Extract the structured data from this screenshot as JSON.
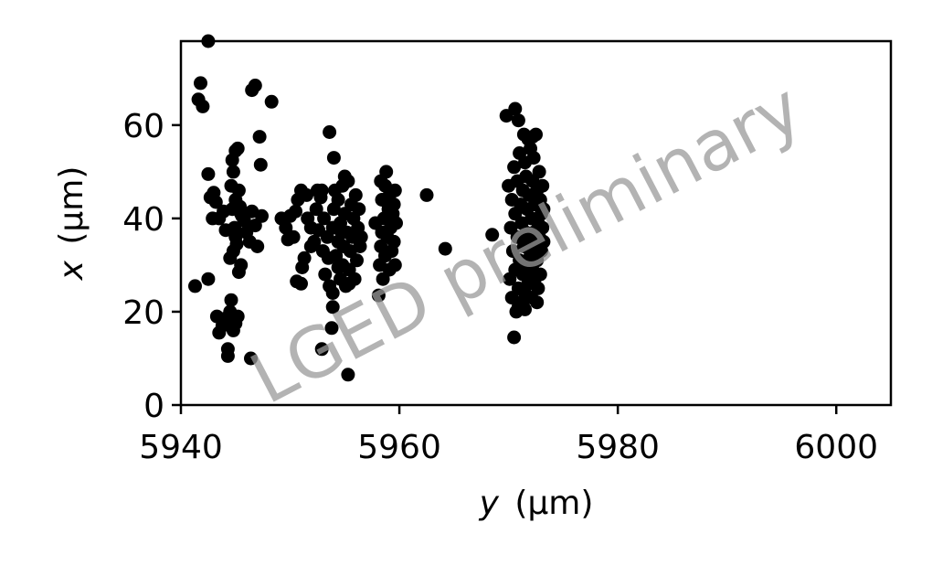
{
  "chart_data": {
    "type": "scatter",
    "xlabel_var": "y",
    "xlabel_unit": "(µm)",
    "ylabel_var": "x",
    "ylabel_unit": "(µm)",
    "xlim": [
      5940,
      6005
    ],
    "ylim": [
      0,
      78
    ],
    "xticks": [
      5940,
      5960,
      5980,
      6000
    ],
    "yticks": [
      0,
      20,
      40,
      60
    ],
    "grid": false,
    "marker_color": "#000000",
    "watermark": "LGED preliminary",
    "series": [
      {
        "points": [
          [
            5942.5,
            78
          ],
          [
            5941.8,
            69
          ],
          [
            5941.6,
            65.5
          ],
          [
            5942.0,
            64
          ],
          [
            5941.3,
            25.5
          ],
          [
            5942.5,
            27
          ],
          [
            5942.5,
            49.5
          ],
          [
            5942.7,
            44.5
          ],
          [
            5943.0,
            45.5
          ],
          [
            5943.2,
            43.5
          ],
          [
            5942.9,
            40
          ],
          [
            5943.5,
            40
          ],
          [
            5943.3,
            19
          ],
          [
            5943.5,
            15.5
          ],
          [
            5943.8,
            17
          ],
          [
            5944.0,
            18.5
          ],
          [
            5944.3,
            12
          ],
          [
            5944.3,
            10.5
          ],
          [
            5944.5,
            20
          ],
          [
            5944.6,
            22.5
          ],
          [
            5944.8,
            16
          ],
          [
            5945.0,
            17.5
          ],
          [
            5945.2,
            19
          ],
          [
            5944.5,
            31.5
          ],
          [
            5944.8,
            33
          ],
          [
            5945.0,
            36
          ],
          [
            5945.5,
            30
          ],
          [
            5945.3,
            28.5
          ],
          [
            5944.7,
            42
          ],
          [
            5945.0,
            44
          ],
          [
            5944.6,
            47
          ],
          [
            5944.8,
            50
          ],
          [
            5944.7,
            52.5
          ],
          [
            5945.0,
            54.5
          ],
          [
            5945.2,
            55
          ],
          [
            5945.3,
            46
          ],
          [
            5945.5,
            41
          ],
          [
            5945.8,
            39.5
          ],
          [
            5946.0,
            37
          ],
          [
            5946.3,
            35
          ],
          [
            5946.5,
            41.5
          ],
          [
            5946.8,
            38.5
          ],
          [
            5947.0,
            34
          ],
          [
            5947.4,
            40.5
          ],
          [
            5946.5,
            67.5
          ],
          [
            5946.8,
            68.5
          ],
          [
            5947.2,
            57.5
          ],
          [
            5947.3,
            51.5
          ],
          [
            5948.3,
            65
          ],
          [
            5946.4,
            10
          ],
          [
            5944.1,
            37.5
          ],
          [
            5943.9,
            41.5
          ],
          [
            5945.6,
            40.5
          ],
          [
            5944.9,
            38
          ],
          [
            5945.1,
            34.5
          ],
          [
            5945.4,
            42.5
          ],
          [
            5949.2,
            40
          ],
          [
            5949.6,
            38
          ],
          [
            5949.8,
            35.5
          ],
          [
            5950.0,
            40.5
          ],
          [
            5950.3,
            36
          ],
          [
            5950.5,
            41.5
          ],
          [
            5950.6,
            26.5
          ],
          [
            5951.0,
            26
          ],
          [
            5951.1,
            29.5
          ],
          [
            5951.3,
            31.5
          ],
          [
            5950.7,
            44
          ],
          [
            5951.0,
            46
          ],
          [
            5951.5,
            45
          ],
          [
            5951.6,
            40
          ],
          [
            5951.9,
            38
          ],
          [
            5952.2,
            35
          ],
          [
            5952.4,
            42
          ],
          [
            5952.5,
            46
          ],
          [
            5952.9,
            46
          ],
          [
            5952.8,
            44.5
          ],
          [
            5953.1,
            40
          ],
          [
            5953.4,
            36
          ],
          [
            5953.0,
            33
          ],
          [
            5952.6,
            37.5
          ],
          [
            5951.9,
            34
          ],
          [
            5953.6,
            58.5
          ],
          [
            5954.0,
            53
          ],
          [
            5952.9,
            12
          ],
          [
            5953.8,
            16.5
          ],
          [
            5953.9,
            21
          ],
          [
            5955.3,
            6.5
          ],
          [
            5954.4,
            29.5
          ],
          [
            5953.5,
            31.5
          ],
          [
            5953.2,
            28
          ],
          [
            5953.6,
            25.5
          ],
          [
            5953.9,
            24
          ],
          [
            5953.9,
            38
          ],
          [
            5954.0,
            42
          ],
          [
            5954.1,
            46
          ],
          [
            5954.2,
            32
          ],
          [
            5954.4,
            35
          ],
          [
            5954.4,
            44
          ],
          [
            5954.6,
            27
          ],
          [
            5954.6,
            39
          ],
          [
            5954.8,
            30
          ],
          [
            5954.8,
            47
          ],
          [
            5954.9,
            34
          ],
          [
            5955.0,
            41
          ],
          [
            5955.1,
            25.5
          ],
          [
            5955.2,
            37
          ],
          [
            5955.3,
            48
          ],
          [
            5955.4,
            29
          ],
          [
            5955.5,
            33
          ],
          [
            5955.6,
            43
          ],
          [
            5955.7,
            36
          ],
          [
            5955.8,
            40
          ],
          [
            5955.9,
            27
          ],
          [
            5956.0,
            45
          ],
          [
            5956.1,
            31
          ],
          [
            5956.2,
            38
          ],
          [
            5956.3,
            42
          ],
          [
            5956.4,
            34
          ],
          [
            5955.4,
            26
          ],
          [
            5955.0,
            49
          ],
          [
            5954.7,
            37
          ],
          [
            5956.5,
            36
          ],
          [
            5957.8,
            39
          ],
          [
            5958.1,
            23.5
          ],
          [
            5958.2,
            30
          ],
          [
            5958.3,
            34
          ],
          [
            5958.4,
            37
          ],
          [
            5958.4,
            44
          ],
          [
            5958.5,
            27
          ],
          [
            5958.6,
            40
          ],
          [
            5958.7,
            47
          ],
          [
            5958.7,
            32
          ],
          [
            5958.8,
            50
          ],
          [
            5958.9,
            36
          ],
          [
            5959.0,
            42
          ],
          [
            5959.1,
            29
          ],
          [
            5959.1,
            45
          ],
          [
            5959.2,
            38
          ],
          [
            5959.3,
            33
          ],
          [
            5959.4,
            41
          ],
          [
            5959.5,
            35
          ],
          [
            5959.5,
            43
          ],
          [
            5959.6,
            30
          ],
          [
            5959.7,
            39
          ],
          [
            5959.6,
            46
          ],
          [
            5958.3,
            48
          ],
          [
            5962.5,
            45
          ],
          [
            5964.2,
            33.5
          ],
          [
            5968.5,
            36.5
          ],
          [
            5969.8,
            62
          ],
          [
            5970.6,
            63.5
          ],
          [
            5970.9,
            61
          ],
          [
            5970.5,
            14.5
          ],
          [
            5970.0,
            47
          ],
          [
            5970.1,
            27
          ],
          [
            5970.2,
            38
          ],
          [
            5970.3,
            44
          ],
          [
            5970.3,
            23
          ],
          [
            5970.4,
            33
          ],
          [
            5970.5,
            51
          ],
          [
            5970.6,
            29
          ],
          [
            5970.6,
            41
          ],
          [
            5970.7,
            20
          ],
          [
            5970.8,
            36
          ],
          [
            5970.8,
            48
          ],
          [
            5970.9,
            25
          ],
          [
            5971.0,
            31
          ],
          [
            5971.0,
            54
          ],
          [
            5971.1,
            43
          ],
          [
            5971.2,
            22
          ],
          [
            5971.2,
            39
          ],
          [
            5971.3,
            46
          ],
          [
            5971.3,
            28
          ],
          [
            5971.4,
            34
          ],
          [
            5971.5,
            52
          ],
          [
            5971.5,
            24
          ],
          [
            5971.6,
            37
          ],
          [
            5971.6,
            49
          ],
          [
            5971.7,
            30
          ],
          [
            5971.7,
            42
          ],
          [
            5971.8,
            57
          ],
          [
            5971.8,
            26
          ],
          [
            5971.9,
            35
          ],
          [
            5971.9,
            45
          ],
          [
            5972.0,
            32
          ],
          [
            5972.0,
            55
          ],
          [
            5972.1,
            40
          ],
          [
            5972.1,
            23
          ],
          [
            5972.2,
            48
          ],
          [
            5972.2,
            29
          ],
          [
            5972.3,
            37
          ],
          [
            5972.3,
            53
          ],
          [
            5972.4,
            43
          ],
          [
            5972.4,
            27
          ],
          [
            5972.5,
            34
          ],
          [
            5972.5,
            58
          ],
          [
            5972.6,
            46
          ],
          [
            5972.6,
            31
          ],
          [
            5972.7,
            39
          ],
          [
            5972.7,
            25
          ],
          [
            5972.8,
            50
          ],
          [
            5972.8,
            36
          ],
          [
            5972.9,
            44
          ],
          [
            5972.9,
            28
          ],
          [
            5973.0,
            41
          ],
          [
            5973.0,
            33
          ],
          [
            5973.1,
            47
          ],
          [
            5973.1,
            38
          ],
          [
            5973.2,
            35
          ],
          [
            5973.2,
            42
          ],
          [
            5971.4,
            58
          ],
          [
            5972.2,
            57.5
          ],
          [
            5970.9,
            21
          ],
          [
            5971.5,
            20.5
          ],
          [
            5972.6,
            22
          ]
        ]
      }
    ]
  }
}
